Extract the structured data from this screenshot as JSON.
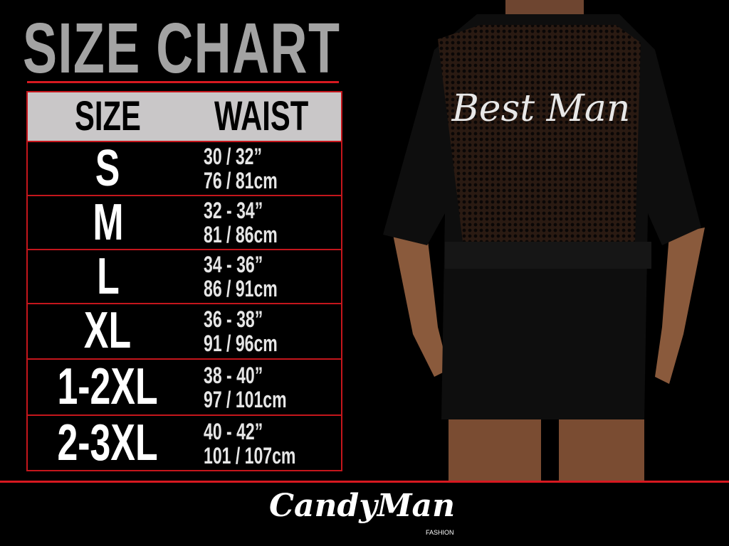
{
  "title": "SIZE CHART",
  "table": {
    "headers": {
      "size": "SIZE",
      "waist": "WAIST"
    },
    "rows": [
      {
        "size": "S",
        "inches": "30 / 32”",
        "cm": "76 / 81cm"
      },
      {
        "size": "M",
        "inches": "32 - 34”",
        "cm": "81 / 86cm"
      },
      {
        "size": "L",
        "inches": "34 - 36”",
        "cm": "86 / 91cm"
      },
      {
        "size": "XL",
        "inches": "36 - 38”",
        "cm": "91 / 96cm"
      },
      {
        "size": "1-2XL",
        "inches": "38 - 40”",
        "cm": "97 / 101cm"
      },
      {
        "size": "2-3XL",
        "inches": "40 - 42”",
        "cm": "101 / 107cm"
      }
    ]
  },
  "product_photo": {
    "garment_text": "Best Man"
  },
  "brand": {
    "name": "CandyMan",
    "sub": "FASHION"
  },
  "colors": {
    "accent_red": "#d71920",
    "title_grey": "#a3a3a3",
    "header_bg": "#c9c7c8"
  }
}
